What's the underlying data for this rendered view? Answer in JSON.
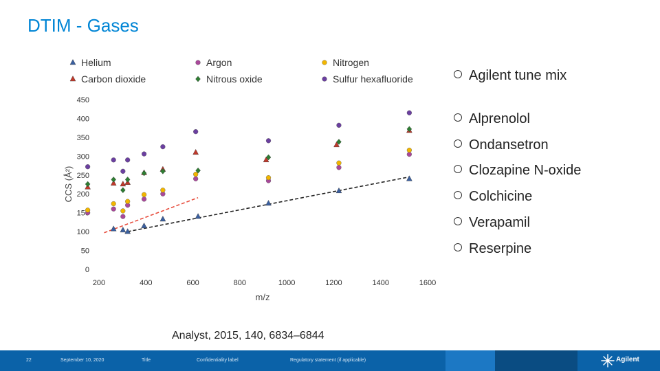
{
  "slide": {
    "title": "DTIM - Gases",
    "bullets": [
      "Agilent tune mix",
      "Alprenolol",
      "Ondansetron",
      "Clozapine N-oxide",
      "Colchicine",
      "Verapamil",
      "Reserpine"
    ],
    "citation": "Analyst, 2015, 140, 6834–6844"
  },
  "footer": {
    "page": "22",
    "date": "September 10, 2020",
    "title": "Title",
    "confidentiality": "Confidentiality label",
    "regulatory": "Regulatory statement (if applicable)",
    "brand": "Agilent",
    "colors": {
      "bar": "#0b62a8",
      "segment1": "#1c78c4",
      "segment2": "#0a4c82"
    }
  },
  "chart_data": {
    "type": "scatter",
    "xlabel": "m/z",
    "ylabel": "CCS (Å²)",
    "xlim": [
      200,
      1600
    ],
    "ylim": [
      0,
      450
    ],
    "xticks": [
      200,
      400,
      600,
      800,
      1000,
      1200,
      1400,
      1600
    ],
    "yticks": [
      0,
      50,
      100,
      150,
      200,
      250,
      300,
      350,
      400,
      450
    ],
    "legend": "top",
    "grid": false,
    "series": [
      {
        "name": "Helium",
        "marker": "triangle",
        "color": "#3a5f9f",
        "x": [
          322,
          302,
          262,
          392,
          472,
          622,
          922,
          1222,
          1522
        ],
        "y": [
          100,
          104,
          107,
          115,
          133,
          140,
          175,
          208,
          240
        ]
      },
      {
        "name": "Carbon dioxide",
        "marker": "triangle",
        "color": "#c0392b",
        "x": [
          152,
          262,
          302,
          322,
          392,
          472,
          612,
          912,
          1212,
          1522
        ],
        "y": [
          218,
          228,
          226,
          230,
          256,
          265,
          310,
          290,
          330,
          368
        ]
      },
      {
        "name": "Argon",
        "marker": "circle",
        "color": "#a9489a",
        "x": [
          152,
          262,
          302,
          322,
          392,
          472,
          612,
          922,
          1222,
          1522
        ],
        "y": [
          150,
          160,
          140,
          170,
          186,
          200,
          240,
          235,
          270,
          305
        ]
      },
      {
        "name": "Nitrous oxide",
        "marker": "diamond",
        "color": "#2e7d32",
        "x": [
          152,
          262,
          302,
          322,
          392,
          472,
          622,
          922,
          1222,
          1522
        ],
        "y": [
          226,
          238,
          210,
          238,
          255,
          260,
          262,
          297,
          338,
          372
        ]
      },
      {
        "name": "Nitrogen",
        "marker": "circle",
        "color": "#f2b600",
        "x": [
          152,
          262,
          302,
          322,
          392,
          472,
          612,
          922,
          1222,
          1522
        ],
        "y": [
          157,
          174,
          155,
          180,
          198,
          210,
          252,
          243,
          282,
          316
        ]
      },
      {
        "name": "Sulfur hexafluoride",
        "marker": "circle",
        "color": "#6b3fa0",
        "x": [
          152,
          262,
          302,
          322,
          392,
          472,
          612,
          922,
          1222,
          1522
        ],
        "y": [
          272,
          290,
          260,
          290,
          306,
          325,
          365,
          341,
          382,
          415
        ]
      }
    ],
    "trend_lines": [
      {
        "color": "#222222",
        "x": [
          322,
          1522
        ],
        "y": [
          100,
          245
        ]
      },
      {
        "color": "#e74c3c",
        "x": [
          222,
          622
        ],
        "y": [
          97,
          190
        ]
      }
    ]
  }
}
